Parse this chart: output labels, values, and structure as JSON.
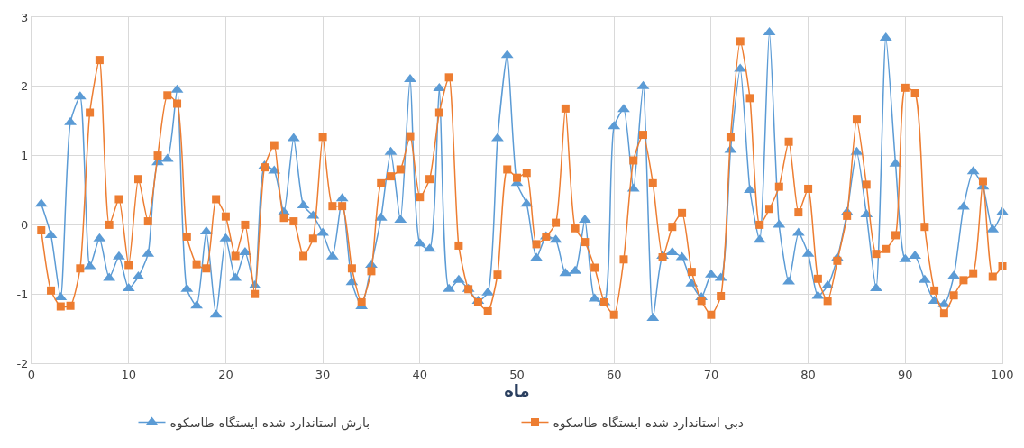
{
  "chart_data": {
    "type": "line",
    "xlabel": "ماه",
    "xlim": [
      0,
      100
    ],
    "xticks": [
      0,
      10,
      20,
      30,
      40,
      50,
      60,
      70,
      80,
      90,
      100
    ],
    "ylim": [
      -2,
      3
    ],
    "yticks": [
      -2,
      -1,
      0,
      1,
      2,
      3
    ],
    "grid": true,
    "legend": "bottom",
    "line_style": "solid",
    "x": [
      1,
      2,
      3,
      4,
      5,
      6,
      7,
      8,
      9,
      10,
      11,
      12,
      13,
      14,
      15,
      16,
      17,
      18,
      19,
      20,
      21,
      22,
      23,
      24,
      25,
      26,
      27,
      28,
      29,
      30,
      31,
      32,
      33,
      34,
      35,
      36,
      37,
      38,
      39,
      40,
      41,
      42,
      43,
      44,
      45,
      46,
      47,
      48,
      49,
      50,
      51,
      52,
      53,
      54,
      55,
      56,
      57,
      58,
      59,
      60,
      61,
      62,
      63,
      64,
      65,
      66,
      67,
      68,
      69,
      70,
      71,
      72,
      73,
      74,
      75,
      76,
      77,
      78,
      79,
      80,
      81,
      82,
      83,
      84,
      85,
      86,
      87,
      88,
      89,
      90,
      91,
      92,
      93,
      94,
      95,
      96,
      97,
      98,
      99,
      100
    ],
    "series": [
      {
        "name": "بارش استاندارد شده ایستگاه طاسکوه",
        "color": "#5b9bd5",
        "marker": "triangle",
        "values": [
          0.3,
          -0.15,
          -1.05,
          1.48,
          1.85,
          -0.6,
          -0.2,
          -0.77,
          -0.46,
          -0.92,
          -0.75,
          -0.42,
          0.9,
          0.95,
          1.95,
          -0.93,
          -1.17,
          -0.1,
          -1.3,
          -0.2,
          -0.77,
          -0.4,
          -0.88,
          0.85,
          0.78,
          0.18,
          1.25,
          0.28,
          0.13,
          -0.12,
          -0.46,
          0.38,
          -0.83,
          -1.18,
          -0.58,
          0.1,
          1.05,
          0.07,
          2.1,
          -0.27,
          -0.35,
          1.97,
          -0.93,
          -0.8,
          -0.93,
          -1.1,
          -0.98,
          1.25,
          2.45,
          0.6,
          0.3,
          -0.48,
          -0.17,
          -0.22,
          -0.7,
          -0.67,
          0.07,
          -1.07,
          -1.12,
          1.42,
          1.67,
          0.52,
          2.0,
          -1.35,
          -0.45,
          -0.4,
          -0.47,
          -0.85,
          -1.05,
          -0.72,
          -0.77,
          1.08,
          2.25,
          0.5,
          -0.22,
          2.78,
          0.0,
          -0.82,
          -0.12,
          -0.42,
          -1.03,
          -0.88,
          -0.48,
          0.18,
          1.05,
          0.15,
          -0.92,
          2.7,
          0.88,
          -0.5,
          -0.45,
          -0.8,
          -1.1,
          -1.15,
          -0.74,
          0.26,
          0.77,
          0.55,
          -0.07,
          0.18
        ]
      },
      {
        "name": "دبی استاندارد شده ایستگاه طاسکوه",
        "color": "#ed7d31",
        "marker": "square",
        "values": [
          -0.08,
          -0.95,
          -1.18,
          -1.17,
          -0.63,
          1.62,
          2.38,
          0.0,
          0.37,
          -0.58,
          0.66,
          0.05,
          1.0,
          1.87,
          1.75,
          -0.17,
          -0.57,
          -0.63,
          0.37,
          0.12,
          -0.45,
          0.0,
          -1.0,
          0.83,
          1.15,
          0.1,
          0.05,
          -0.45,
          -0.2,
          1.27,
          0.27,
          0.27,
          -0.63,
          -1.12,
          -0.67,
          0.6,
          0.7,
          0.8,
          1.28,
          0.4,
          0.66,
          1.62,
          2.13,
          -0.3,
          -0.93,
          -1.12,
          -1.25,
          -0.72,
          0.8,
          0.68,
          0.75,
          -0.28,
          -0.17,
          0.03,
          1.68,
          -0.05,
          -0.25,
          -0.62,
          -1.12,
          -1.3,
          -0.5,
          0.93,
          1.3,
          0.6,
          -0.47,
          -0.03,
          0.17,
          -0.68,
          -1.1,
          -1.3,
          -1.03,
          1.27,
          2.65,
          1.83,
          0.0,
          0.23,
          0.55,
          1.2,
          0.18,
          0.52,
          -0.78,
          -1.1,
          -0.52,
          0.13,
          1.52,
          0.58,
          -0.42,
          -0.35,
          -0.15,
          1.98,
          1.9,
          -0.03,
          -0.95,
          -1.28,
          -1.02,
          -0.8,
          -0.7,
          0.63,
          -0.75,
          -0.6
        ]
      }
    ]
  }
}
